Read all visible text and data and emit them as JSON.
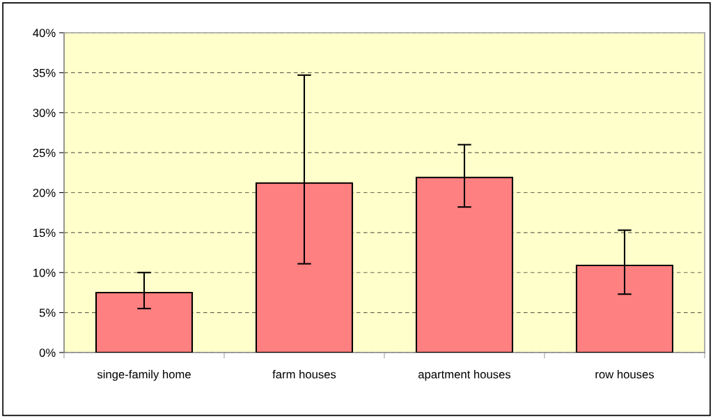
{
  "chart_data": {
    "type": "bar",
    "categories": [
      "singe-family home",
      "farm houses",
      "apartment houses",
      "row houses"
    ],
    "values": [
      7.5,
      21.2,
      21.9,
      10.9
    ],
    "errors": [
      [
        5.5,
        10
      ],
      [
        11.1,
        34.7
      ],
      [
        18.2,
        26
      ],
      [
        7.3,
        15.3
      ]
    ],
    "color": "#ff8080",
    "ylim": [
      0,
      40
    ],
    "yticks": [
      {
        "value": 0,
        "label": "0%"
      },
      {
        "value": 5,
        "label": "5%"
      },
      {
        "value": 10,
        "label": "10%"
      },
      {
        "value": 15,
        "label": "15%"
      },
      {
        "value": 20,
        "label": "20%"
      },
      {
        "value": 25,
        "label": "25%"
      },
      {
        "value": 30,
        "label": "30%"
      },
      {
        "value": 35,
        "label": "35%"
      },
      {
        "value": 40,
        "label": "40%"
      }
    ],
    "grid": "y"
  }
}
